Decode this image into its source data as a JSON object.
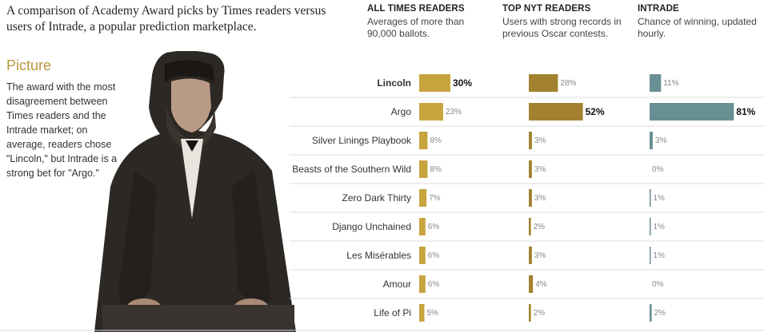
{
  "intro": "A comparison of Academy Award picks by Times readers versus users of Intrade, a popular prediction marketplace.",
  "columns": [
    {
      "title": "ALL TIMES READERS",
      "desc": "Averages of more than 90,000 ballots."
    },
    {
      "title": "TOP NYT READERS",
      "desc": "Users with strong records in previous Oscar contests."
    },
    {
      "title": "INTRADE",
      "desc": "Chance of winning, updated hourly."
    }
  ],
  "category": {
    "title": "Picture",
    "description": "The award with the most disagreement between Times readers and the Intrade market; on average, readers chose \"Lincoln,\" but Intrade is a strong bet for \"Argo.\""
  },
  "colors": {
    "all_readers": "#c8a43f",
    "top_readers": "#a28230",
    "intrade": "#688f93",
    "divider": "#dddddd",
    "category_title": "#b8963b"
  },
  "chart_data": {
    "type": "bar",
    "categories": [
      "Lincoln",
      "Argo",
      "Silver Linings Playbook",
      "Beasts of the Southern Wild",
      "Zero Dark Thirty",
      "Django Unchained",
      "Les Misérables",
      "Amour",
      "Life of Pi"
    ],
    "series": [
      {
        "name": "ALL TIMES READERS",
        "values": [
          30,
          23,
          8,
          8,
          7,
          6,
          6,
          6,
          5
        ]
      },
      {
        "name": "TOP NYT READERS",
        "values": [
          28,
          52,
          3,
          3,
          3,
          2,
          3,
          4,
          2
        ]
      },
      {
        "name": "INTRADE",
        "values": [
          11,
          81,
          3,
          0,
          1,
          1,
          1,
          0,
          2
        ]
      }
    ],
    "value_labels": [
      [
        "30%",
        "23%",
        "8%",
        "8%",
        "7%",
        "6%",
        "6%",
        "6%",
        "5%"
      ],
      [
        "28%",
        "52%",
        "3%",
        "3%",
        "3%",
        "2%",
        "3%",
        "4%",
        "2%"
      ],
      [
        "11%",
        "81%",
        "3%",
        "0%",
        "1%",
        "1%",
        "1%",
        "0%",
        "2%"
      ]
    ],
    "highlight": [
      "Lincoln",
      "Argo",
      "Argo"
    ],
    "ylim": [
      0,
      100
    ],
    "unit": "%"
  }
}
